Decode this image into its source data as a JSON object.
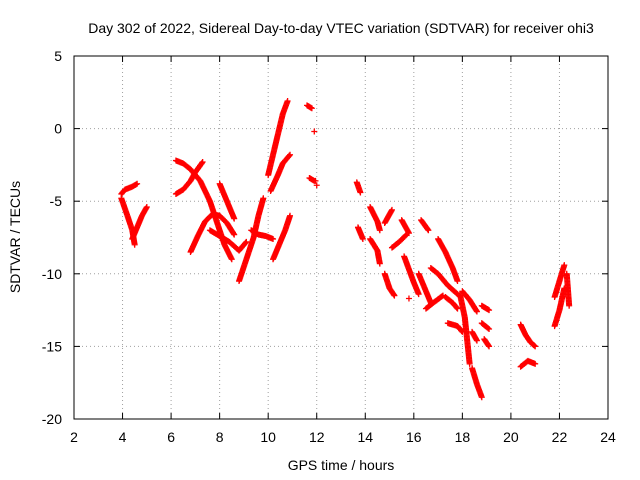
{
  "chart_data": {
    "type": "scatter",
    "title": "Day 302 of 2022, Sidereal Day-to-day VTEC variation (SDTVAR) for receiver ohi3",
    "xlabel": "GPS time / hours",
    "ylabel": "SDTVAR / TECUs",
    "xlim": [
      2,
      24
    ],
    "ylim": [
      -20,
      5
    ],
    "xticks": [
      2,
      4,
      6,
      8,
      10,
      12,
      14,
      16,
      18,
      20,
      22,
      24
    ],
    "yticks": [
      5,
      0,
      -5,
      -10,
      -15,
      -20
    ],
    "xtick_labels": [
      "2",
      "4",
      "6",
      "8",
      "10",
      "12",
      "14",
      "16",
      "18",
      "20",
      "22",
      "24"
    ],
    "ytick_labels": [
      "5",
      "0",
      "-5",
      "-10",
      "-15",
      "-20"
    ],
    "grid": true,
    "marker": "+",
    "marker_color": "#ff0000",
    "tracks": [
      [
        [
          3.95,
          -4.5
        ],
        [
          4.1,
          -4.2
        ],
        [
          4.4,
          -4.0
        ],
        [
          4.6,
          -3.8
        ]
      ],
      [
        [
          3.95,
          -4.8
        ],
        [
          4.2,
          -6.0
        ],
        [
          4.4,
          -7.0
        ],
        [
          4.5,
          -8.0
        ]
      ],
      [
        [
          4.4,
          -7.6
        ],
        [
          4.6,
          -6.8
        ],
        [
          4.8,
          -6.0
        ],
        [
          5.0,
          -5.4
        ]
      ],
      [
        [
          6.2,
          -2.2
        ],
        [
          6.5,
          -2.4
        ],
        [
          6.8,
          -2.8
        ],
        [
          7.2,
          -3.6
        ],
        [
          7.6,
          -5.0
        ],
        [
          7.9,
          -6.5
        ],
        [
          8.2,
          -8.0
        ],
        [
          8.5,
          -9.0
        ]
      ],
      [
        [
          6.2,
          -4.5
        ],
        [
          6.5,
          -4.2
        ],
        [
          6.8,
          -3.6
        ],
        [
          7.0,
          -3.0
        ],
        [
          7.3,
          -2.3
        ]
      ],
      [
        [
          6.8,
          -8.5
        ],
        [
          7.1,
          -7.4
        ],
        [
          7.4,
          -6.4
        ],
        [
          7.7,
          -5.9
        ],
        [
          8.0,
          -6.0
        ],
        [
          8.3,
          -6.5
        ],
        [
          8.6,
          -7.3
        ]
      ],
      [
        [
          7.6,
          -7.0
        ],
        [
          8.0,
          -7.4
        ],
        [
          8.4,
          -7.8
        ],
        [
          8.8,
          -8.4
        ],
        [
          9.1,
          -7.8
        ]
      ],
      [
        [
          8.0,
          -3.8
        ],
        [
          8.2,
          -4.6
        ],
        [
          8.4,
          -5.4
        ],
        [
          8.6,
          -6.2
        ]
      ],
      [
        [
          8.8,
          -10.5
        ],
        [
          9.1,
          -9.0
        ],
        [
          9.4,
          -7.5
        ],
        [
          9.6,
          -6.0
        ],
        [
          9.8,
          -4.8
        ]
      ],
      [
        [
          9.3,
          -7.0
        ],
        [
          9.6,
          -7.3
        ],
        [
          9.9,
          -7.4
        ],
        [
          10.2,
          -7.6
        ]
      ],
      [
        [
          10.0,
          -3.2
        ],
        [
          10.2,
          -1.8
        ],
        [
          10.4,
          -0.4
        ],
        [
          10.6,
          1.0
        ],
        [
          10.8,
          1.9
        ]
      ],
      [
        [
          10.1,
          -4.3
        ],
        [
          10.4,
          -3.2
        ],
        [
          10.6,
          -2.4
        ],
        [
          10.9,
          -1.8
        ]
      ],
      [
        [
          10.2,
          -9.0
        ],
        [
          10.45,
          -8.0
        ],
        [
          10.7,
          -7.0
        ],
        [
          10.9,
          -6.0
        ]
      ],
      [
        [
          11.6,
          1.6
        ],
        [
          11.8,
          1.4
        ]
      ],
      [
        [
          11.7,
          -3.4
        ],
        [
          11.9,
          -3.6
        ]
      ],
      [
        [
          11.9,
          -0.2
        ]
      ],
      [
        [
          11.95,
          -3.6
        ]
      ],
      [
        [
          13.65,
          -3.7
        ],
        [
          13.8,
          -4.4
        ]
      ],
      [
        [
          13.7,
          -6.8
        ],
        [
          13.9,
          -7.6
        ]
      ],
      [
        [
          14.2,
          -5.4
        ],
        [
          14.5,
          -6.4
        ],
        [
          14.6,
          -7.0
        ]
      ],
      [
        [
          14.2,
          -7.6
        ],
        [
          14.5,
          -8.4
        ],
        [
          14.6,
          -9.3
        ]
      ],
      [
        [
          14.8,
          -10.0
        ],
        [
          15.0,
          -11.0
        ],
        [
          15.2,
          -11.5
        ]
      ],
      [
        [
          14.8,
          -6.5
        ],
        [
          15.1,
          -5.6
        ]
      ],
      [
        [
          15.1,
          -8.2
        ],
        [
          15.4,
          -7.8
        ],
        [
          15.7,
          -7.3
        ]
      ],
      [
        [
          15.5,
          -6.3
        ],
        [
          15.8,
          -7.2
        ]
      ],
      [
        [
          15.6,
          -8.8
        ],
        [
          15.8,
          -9.7
        ],
        [
          16.0,
          -10.6
        ],
        [
          16.2,
          -11.4
        ]
      ],
      [
        [
          16.3,
          -6.3
        ],
        [
          16.6,
          -7.0
        ]
      ],
      [
        [
          16.2,
          -10.0
        ],
        [
          16.5,
          -11.2
        ],
        [
          16.7,
          -12.0
        ]
      ],
      [
        [
          16.5,
          -12.4
        ],
        [
          16.8,
          -12.0
        ],
        [
          17.2,
          -11.5
        ]
      ],
      [
        [
          16.7,
          -9.6
        ],
        [
          17.0,
          -10.0
        ],
        [
          17.4,
          -10.8
        ],
        [
          17.8,
          -11.4
        ]
      ],
      [
        [
          17.0,
          -7.6
        ],
        [
          17.3,
          -8.5
        ],
        [
          17.6,
          -9.6
        ],
        [
          17.8,
          -10.5
        ]
      ],
      [
        [
          17.3,
          -11.6
        ],
        [
          17.6,
          -12.0
        ],
        [
          17.8,
          -12.4
        ]
      ],
      [
        [
          17.4,
          -13.4
        ],
        [
          17.8,
          -13.6
        ],
        [
          18.0,
          -14.0
        ]
      ],
      [
        [
          17.9,
          -11.4
        ],
        [
          18.1,
          -13.0
        ],
        [
          18.2,
          -14.6
        ],
        [
          18.3,
          -16.2
        ]
      ],
      [
        [
          18.0,
          -11.2
        ],
        [
          18.3,
          -11.8
        ],
        [
          18.6,
          -12.6
        ]
      ],
      [
        [
          18.4,
          -14.0
        ],
        [
          18.6,
          -14.6
        ]
      ],
      [
        [
          18.4,
          -16.5
        ],
        [
          18.6,
          -17.6
        ],
        [
          18.8,
          -18.5
        ]
      ],
      [
        [
          18.8,
          -12.2
        ],
        [
          19.1,
          -12.5
        ]
      ],
      [
        [
          18.8,
          -13.4
        ],
        [
          19.1,
          -13.8
        ]
      ],
      [
        [
          18.9,
          -14.5
        ],
        [
          19.1,
          -15.0
        ]
      ],
      [
        [
          20.4,
          -13.5
        ],
        [
          20.6,
          -14.2
        ],
        [
          20.8,
          -14.7
        ],
        [
          21.0,
          -15.0
        ]
      ],
      [
        [
          20.4,
          -16.4
        ],
        [
          20.7,
          -16.0
        ],
        [
          21.0,
          -16.2
        ]
      ],
      [
        [
          21.8,
          -13.6
        ],
        [
          22.0,
          -12.5
        ],
        [
          22.2,
          -11.0
        ]
      ],
      [
        [
          21.8,
          -11.6
        ],
        [
          22.0,
          -10.5
        ],
        [
          22.2,
          -9.4
        ]
      ],
      [
        [
          22.3,
          -10.0
        ],
        [
          22.4,
          -12.2
        ]
      ],
      [
        [
          15.8,
          -11.7
        ]
      ],
      [
        [
          12.0,
          -3.9
        ]
      ]
    ]
  }
}
